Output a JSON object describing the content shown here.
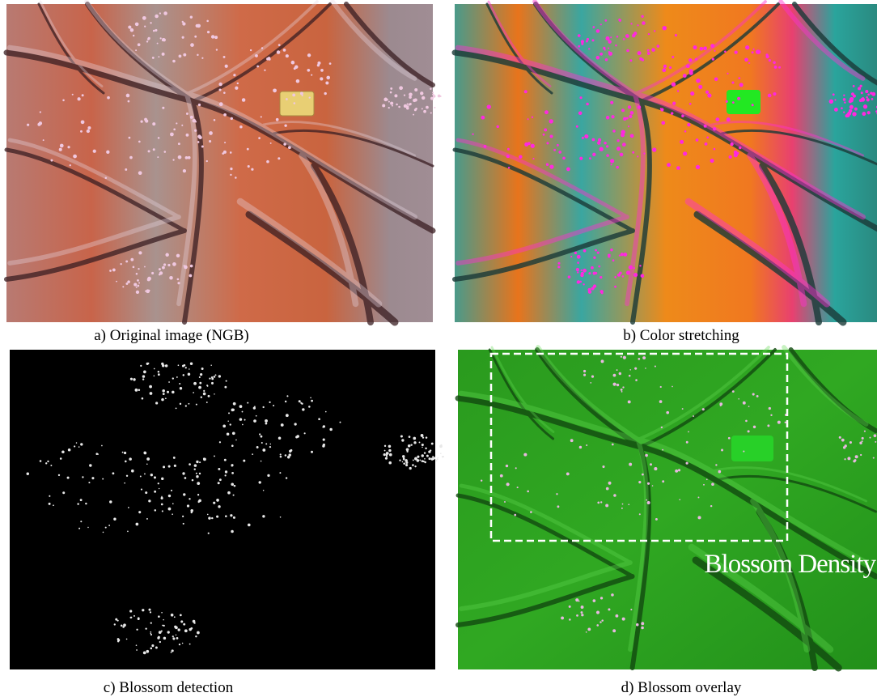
{
  "panels": [
    {
      "caption": "a) Original image (NGB)"
    },
    {
      "caption": "b) Color stretching"
    },
    {
      "caption": "c) Blossom detection"
    },
    {
      "caption": "d) Blossom overlay",
      "annotation": "Blossom Density"
    }
  ]
}
